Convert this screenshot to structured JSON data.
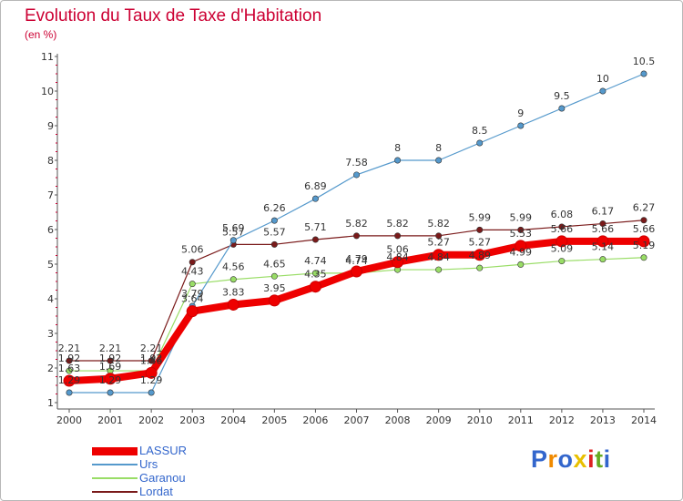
{
  "title": "Evolution du Taux de Taxe d'Habitation",
  "subtitle": "(en %)",
  "brand": {
    "text": "Proxiti",
    "letter_colors": [
      "#3366cc",
      "#f08a00",
      "#3366cc",
      "#e8c000",
      "#dd2222",
      "#66aa22",
      "#3366cc"
    ]
  },
  "chart_data": {
    "type": "line",
    "x": [
      2000,
      2001,
      2002,
      2003,
      2004,
      2005,
      2006,
      2007,
      2008,
      2009,
      2010,
      2011,
      2012,
      2013,
      2014
    ],
    "ylim": [
      1,
      11
    ],
    "yticks": [
      1,
      2,
      3,
      4,
      5,
      6,
      7,
      8,
      9,
      10,
      11
    ],
    "grid": false,
    "legend": "bottom-left",
    "series": [
      {
        "name": "Lordat",
        "color": "#7a1a1a",
        "values": [
          2.21,
          2.21,
          2.21,
          5.06,
          5.57,
          5.57,
          5.71,
          5.82,
          5.82,
          5.82,
          5.99,
          5.99,
          6.08,
          6.17,
          6.27
        ],
        "labels": [
          "2.21",
          "2.21",
          "2.21",
          "5.06",
          "5.57",
          "5.57",
          "5.71",
          "5.82",
          "5.82",
          "5.82",
          "5.99",
          "5.99",
          "6.08",
          "6.17",
          "6.27"
        ]
      },
      {
        "name": "Garanou",
        "color": "#99dd66",
        "values": [
          1.92,
          1.92,
          1.92,
          4.43,
          4.56,
          4.65,
          4.74,
          4.74,
          4.84,
          4.84,
          4.89,
          4.99,
          5.09,
          5.14,
          5.19
        ],
        "labels": [
          "1.92",
          "1.92",
          "1.92",
          "4.43",
          "4.56",
          "4.65",
          "4.74",
          "4.74",
          "4.84",
          "4.84",
          "4.89",
          "4.99",
          "5.09",
          "5.14",
          "5.19"
        ]
      },
      {
        "name": "Urs",
        "color": "#5599cc",
        "values": [
          1.29,
          1.29,
          1.29,
          3.79,
          5.69,
          6.26,
          6.89,
          7.58,
          8,
          8,
          8.5,
          9,
          9.5,
          10,
          10.5
        ],
        "labels": [
          "1.29",
          "1.29",
          "1.29",
          "3.79",
          "5.69",
          "6.26",
          "6.89",
          "7.58",
          "8",
          "8",
          "8.5",
          "9",
          "9.5",
          "10",
          "10.5"
        ]
      },
      {
        "name": "LASSUR",
        "color": "#ee0000",
        "values": [
          1.63,
          1.69,
          1.86,
          3.64,
          3.83,
          3.95,
          4.35,
          4.79,
          5.06,
          5.27,
          5.27,
          5.53,
          5.66,
          5.66,
          5.66
        ],
        "labels": [
          "1.63",
          "1.69",
          "1.86",
          "3.64",
          "3.83",
          "3.95",
          "4.35",
          "4.79",
          "5.06",
          "5.27",
          "5.27",
          "5.53",
          "5.66",
          "5.66",
          "5.66"
        ]
      }
    ]
  }
}
